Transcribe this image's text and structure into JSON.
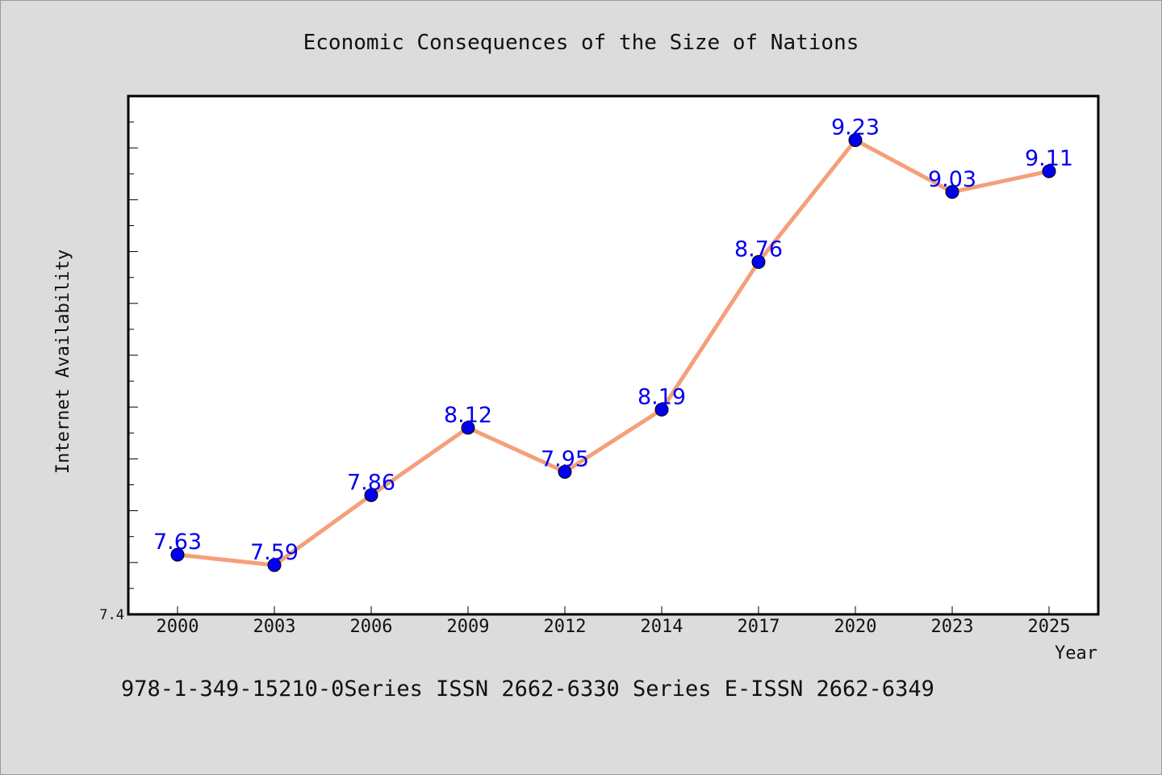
{
  "chart_data": {
    "type": "line",
    "title": "Economic Consequences of the Size of Nations",
    "xlabel": "Year",
    "ylabel": "Internet Availability",
    "categories": [
      "2000",
      "2003",
      "2006",
      "2009",
      "2012",
      "2014",
      "2017",
      "2020",
      "2023",
      "2025"
    ],
    "series": [
      {
        "values": [
          7.63,
          7.59,
          7.86,
          8.12,
          7.95,
          8.19,
          8.76,
          9.23,
          9.03,
          9.11
        ],
        "value_labels": [
          "7.63",
          "7.59",
          "7.86",
          "8.12",
          "7.95",
          "8.19",
          "8.76",
          "9.23",
          "9.03",
          "9.11"
        ]
      }
    ],
    "ylim": [
      7.4,
      9.4
    ],
    "ytick_labels": [
      "7.4"
    ],
    "grid": false,
    "colors": {
      "line": "#f4a07a",
      "marker": "#0000ee",
      "label": "#0000ee",
      "plot_background": "#ffffff",
      "page_background": "#dcdcdc"
    }
  },
  "footer": {
    "text": "978-1-349-15210-0Series ISSN 2662-6330 Series E-ISSN 2662-6349"
  }
}
